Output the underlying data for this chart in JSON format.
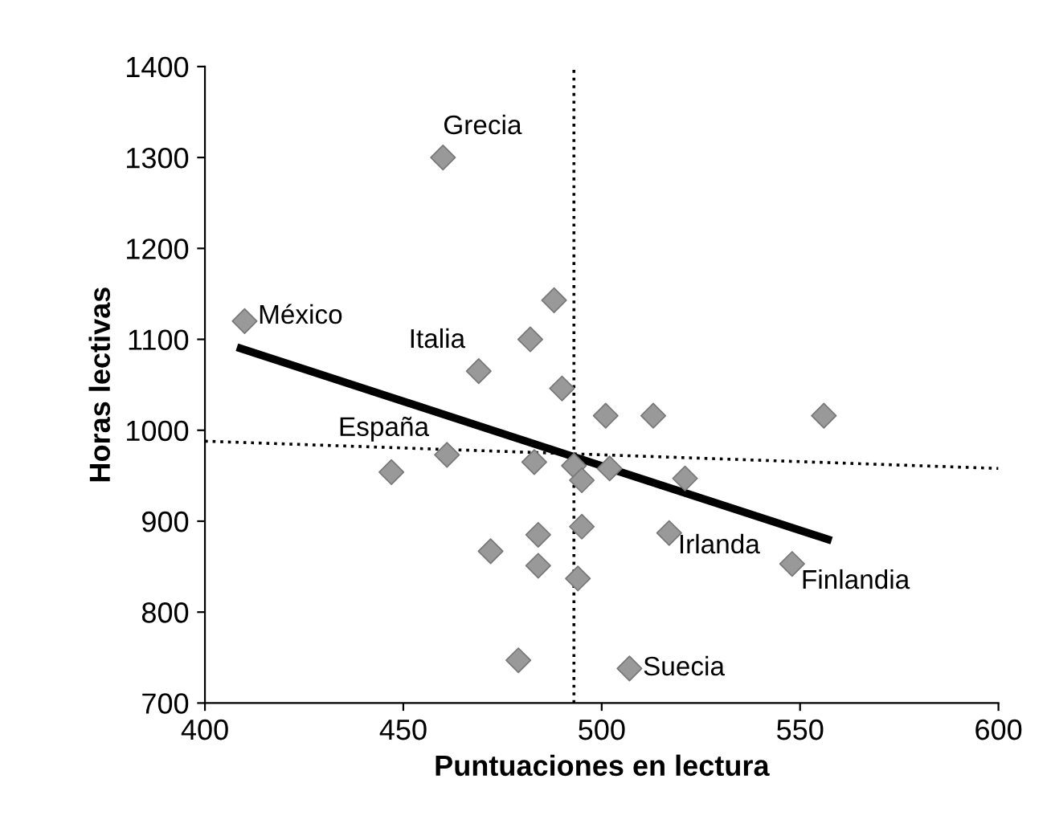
{
  "chart_data": {
    "type": "scatter",
    "xlabel": "Puntuaciones en lectura",
    "ylabel": "Horas lectivas",
    "xlim": [
      400,
      600
    ],
    "xticks": [
      400,
      450,
      500,
      550,
      600
    ],
    "ylim": [
      700,
      1400
    ],
    "yticks": [
      700,
      800,
      900,
      1000,
      1100,
      1200,
      1300,
      1400
    ],
    "grid": false,
    "series": [
      {
        "marker": "diamond",
        "color": "#999999",
        "x": [
          410,
          460,
          469,
          482,
          488,
          490,
          501,
          513,
          556,
          521,
          517,
          548,
          507,
          447,
          461,
          483,
          493,
          495,
          502,
          484,
          495,
          472,
          484,
          494,
          479
        ],
        "values": [
          1120,
          1300,
          1065,
          1100,
          1143,
          1046,
          1016,
          1016,
          1016,
          947,
          887,
          853,
          738,
          954,
          973,
          965,
          961,
          945,
          958,
          885,
          894,
          867,
          851,
          837,
          747
        ]
      },
      {
        "type": "line",
        "color": "#000000",
        "line_style": "solid",
        "x": [
          409,
          557
        ],
        "values": [
          1090,
          880
        ]
      },
      {
        "type": "line",
        "color": "#000000",
        "line_style": "dotted",
        "x": [
          400,
          600
        ],
        "values": [
          988,
          958
        ]
      }
    ],
    "ref_lines": [
      {
        "axis": "x",
        "value": 493,
        "line_style": "dotted",
        "color": "#000000"
      }
    ],
    "annotations": [
      {
        "text": "Grecia",
        "x": 460,
        "y": 1300
      },
      {
        "text": "México",
        "x": 410,
        "y": 1120
      },
      {
        "text": "Italia",
        "x": 469,
        "y": 1065
      },
      {
        "text": "España",
        "x": 461,
        "y": 973
      },
      {
        "text": "Irlanda",
        "x": 517,
        "y": 887
      },
      {
        "text": "Finlandia",
        "x": 548,
        "y": 853
      },
      {
        "text": "Suecia",
        "x": 507,
        "y": 738
      }
    ]
  }
}
